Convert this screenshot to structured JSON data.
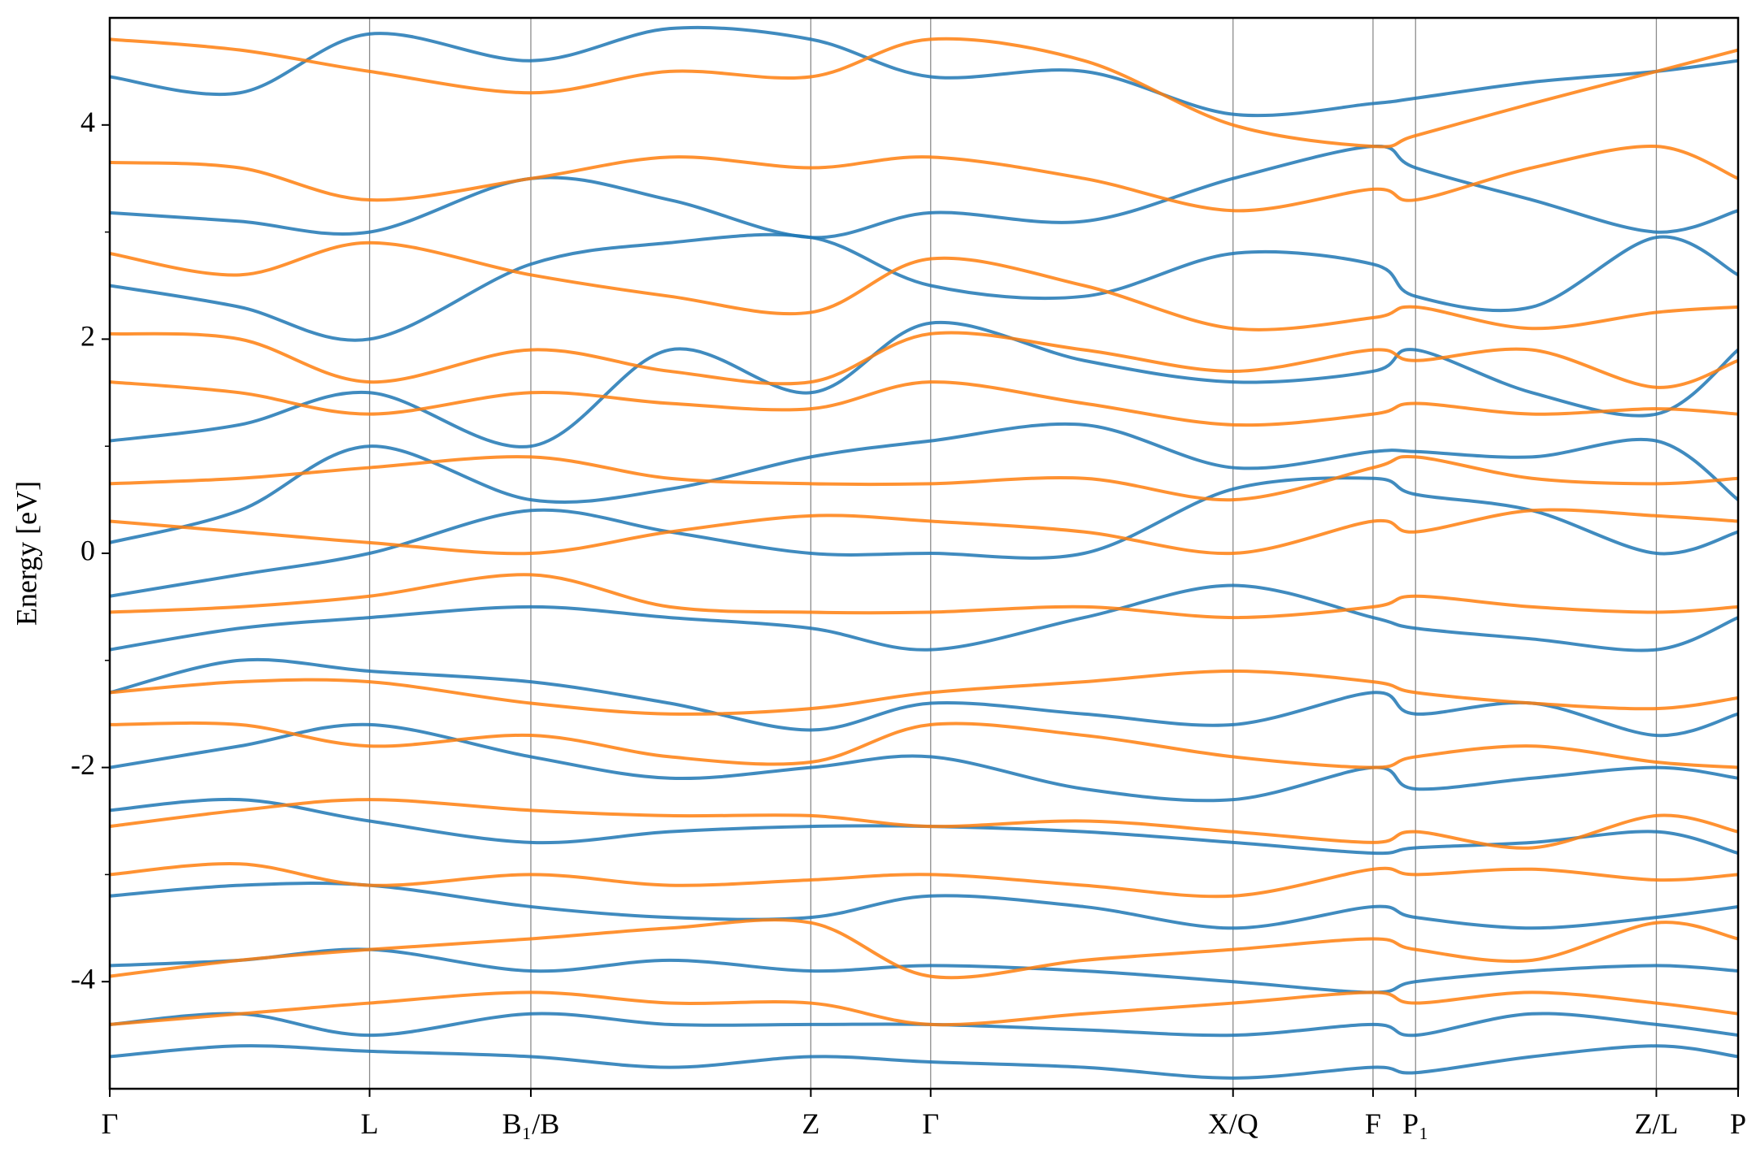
{
  "chart_data": {
    "type": "line",
    "y_label": "Energy [eV]",
    "x": [
      0,
      1.16,
      2.32,
      3.76,
      5.0,
      6.26,
      7.33,
      8.7,
      10.03,
      11.28,
      11.66,
      12.7,
      13.81,
      14.54
    ],
    "xlim": [
      0,
      14.54
    ],
    "xticks": [
      {
        "value": 0,
        "label": "Γ"
      },
      {
        "value": 2.32,
        "label": "L"
      },
      {
        "value": 3.76,
        "label": "B₁/B"
      },
      {
        "value": 6.26,
        "label": "Z"
      },
      {
        "value": 7.33,
        "label": "Γ"
      },
      {
        "value": 10.03,
        "label": "X/Q"
      },
      {
        "value": 11.28,
        "label": "F"
      },
      {
        "value": 11.66,
        "label": "P₁"
      },
      {
        "value": 13.81,
        "label": "Z/L"
      },
      {
        "value": 14.54,
        "label": "P"
      }
    ],
    "ylim": [
      -5,
      5
    ],
    "yticks": [
      -4,
      -2,
      0,
      2,
      4
    ],
    "yminorticks": [
      -3,
      -1,
      1,
      3
    ],
    "grid": true,
    "series": [
      {
        "color": "#1f77b4",
        "values": [
          4.45,
          4.3,
          4.85,
          4.6,
          4.9,
          4.8,
          4.45,
          4.5,
          4.1,
          4.2,
          4.25,
          4.4,
          4.5,
          4.6
        ]
      },
      {
        "color": "#1f77b4",
        "values": [
          3.18,
          3.1,
          3.0,
          3.5,
          3.3,
          2.95,
          3.18,
          3.1,
          3.5,
          3.8,
          3.6,
          3.3,
          3.0,
          3.2
        ]
      },
      {
        "color": "#1f77b4",
        "values": [
          2.5,
          2.3,
          2.0,
          2.7,
          2.9,
          2.95,
          2.5,
          2.4,
          2.8,
          2.7,
          2.4,
          2.3,
          2.95,
          2.6
        ]
      },
      {
        "color": "#1f77b4",
        "values": [
          1.05,
          1.2,
          1.5,
          1.0,
          1.9,
          1.5,
          2.15,
          1.8,
          1.6,
          1.7,
          1.9,
          1.5,
          1.3,
          1.9
        ]
      },
      {
        "color": "#1f77b4",
        "values": [
          0.1,
          0.4,
          1.0,
          0.5,
          0.6,
          0.9,
          1.05,
          1.2,
          0.8,
          0.95,
          0.95,
          0.9,
          1.05,
          0.5
        ]
      },
      {
        "color": "#1f77b4",
        "values": [
          -0.4,
          -0.2,
          0.0,
          0.4,
          0.2,
          0.0,
          0.0,
          0.0,
          0.6,
          0.7,
          0.55,
          0.4,
          0.0,
          0.2
        ]
      },
      {
        "color": "#1f77b4",
        "values": [
          -0.9,
          -0.7,
          -0.6,
          -0.5,
          -0.6,
          -0.7,
          -0.9,
          -0.6,
          -0.3,
          -0.6,
          -0.7,
          -0.8,
          -0.9,
          -0.6
        ]
      },
      {
        "color": "#1f77b4",
        "values": [
          -1.3,
          -1.0,
          -1.1,
          -1.2,
          -1.4,
          -1.65,
          -1.4,
          -1.5,
          -1.6,
          -1.3,
          -1.5,
          -1.4,
          -1.7,
          -1.5
        ]
      },
      {
        "color": "#1f77b4",
        "values": [
          -2.0,
          -1.8,
          -1.6,
          -1.9,
          -2.1,
          -2.0,
          -1.9,
          -2.2,
          -2.3,
          -2.0,
          -2.2,
          -2.1,
          -2.0,
          -2.1
        ]
      },
      {
        "color": "#1f77b4",
        "values": [
          -2.4,
          -2.3,
          -2.5,
          -2.7,
          -2.6,
          -2.55,
          -2.55,
          -2.6,
          -2.7,
          -2.8,
          -2.75,
          -2.7,
          -2.6,
          -2.8
        ]
      },
      {
        "color": "#1f77b4",
        "values": [
          -3.2,
          -3.1,
          -3.1,
          -3.3,
          -3.4,
          -3.4,
          -3.2,
          -3.3,
          -3.5,
          -3.3,
          -3.4,
          -3.5,
          -3.4,
          -3.3
        ]
      },
      {
        "color": "#1f77b4",
        "values": [
          -3.85,
          -3.8,
          -3.7,
          -3.9,
          -3.8,
          -3.9,
          -3.85,
          -3.9,
          -4.0,
          -4.1,
          -4.0,
          -3.9,
          -3.85,
          -3.9
        ]
      },
      {
        "color": "#1f77b4",
        "values": [
          -4.4,
          -4.3,
          -4.5,
          -4.3,
          -4.4,
          -4.4,
          -4.4,
          -4.45,
          -4.5,
          -4.4,
          -4.5,
          -4.3,
          -4.4,
          -4.5
        ]
      },
      {
        "color": "#1f77b4",
        "values": [
          -4.7,
          -4.6,
          -4.65,
          -4.7,
          -4.8,
          -4.7,
          -4.75,
          -4.8,
          -4.9,
          -4.8,
          -4.85,
          -4.7,
          -4.6,
          -4.7
        ]
      },
      {
        "color": "#ff7f0e",
        "values": [
          4.8,
          4.7,
          4.5,
          4.3,
          4.5,
          4.45,
          4.8,
          4.6,
          4.0,
          3.8,
          3.9,
          4.2,
          4.5,
          4.7
        ]
      },
      {
        "color": "#ff7f0e",
        "values": [
          3.65,
          3.6,
          3.3,
          3.5,
          3.7,
          3.6,
          3.7,
          3.5,
          3.2,
          3.4,
          3.3,
          3.6,
          3.8,
          3.5
        ]
      },
      {
        "color": "#ff7f0e",
        "values": [
          2.8,
          2.6,
          2.9,
          2.6,
          2.4,
          2.25,
          2.75,
          2.5,
          2.1,
          2.2,
          2.3,
          2.1,
          2.25,
          2.3
        ]
      },
      {
        "color": "#ff7f0e",
        "values": [
          2.05,
          2.0,
          1.6,
          1.9,
          1.7,
          1.6,
          2.05,
          1.9,
          1.7,
          1.9,
          1.8,
          1.9,
          1.55,
          1.8
        ]
      },
      {
        "color": "#ff7f0e",
        "values": [
          1.6,
          1.5,
          1.3,
          1.5,
          1.4,
          1.35,
          1.6,
          1.4,
          1.2,
          1.3,
          1.4,
          1.3,
          1.35,
          1.3
        ]
      },
      {
        "color": "#ff7f0e",
        "values": [
          0.65,
          0.7,
          0.8,
          0.9,
          0.7,
          0.65,
          0.65,
          0.7,
          0.5,
          0.8,
          0.9,
          0.7,
          0.65,
          0.7
        ]
      },
      {
        "color": "#ff7f0e",
        "values": [
          0.3,
          0.2,
          0.1,
          0.0,
          0.2,
          0.35,
          0.3,
          0.2,
          0.0,
          0.3,
          0.2,
          0.4,
          0.35,
          0.3
        ]
      },
      {
        "color": "#ff7f0e",
        "values": [
          -0.55,
          -0.5,
          -0.4,
          -0.2,
          -0.5,
          -0.55,
          -0.55,
          -0.5,
          -0.6,
          -0.5,
          -0.4,
          -0.5,
          -0.55,
          -0.5
        ]
      },
      {
        "color": "#ff7f0e",
        "values": [
          -1.3,
          -1.2,
          -1.2,
          -1.4,
          -1.5,
          -1.45,
          -1.3,
          -1.2,
          -1.1,
          -1.2,
          -1.3,
          -1.4,
          -1.45,
          -1.35
        ]
      },
      {
        "color": "#ff7f0e",
        "values": [
          -1.6,
          -1.6,
          -1.8,
          -1.7,
          -1.9,
          -1.95,
          -1.6,
          -1.7,
          -1.9,
          -2.0,
          -1.9,
          -1.8,
          -1.95,
          -2.0
        ]
      },
      {
        "color": "#ff7f0e",
        "values": [
          -2.55,
          -2.4,
          -2.3,
          -2.4,
          -2.45,
          -2.45,
          -2.55,
          -2.5,
          -2.6,
          -2.7,
          -2.6,
          -2.75,
          -2.45,
          -2.6
        ]
      },
      {
        "color": "#ff7f0e",
        "values": [
          -3.0,
          -2.9,
          -3.1,
          -3.0,
          -3.1,
          -3.05,
          -3.0,
          -3.1,
          -3.2,
          -2.95,
          -3.0,
          -2.95,
          -3.05,
          -3.0
        ]
      },
      {
        "color": "#ff7f0e",
        "values": [
          -3.95,
          -3.8,
          -3.7,
          -3.6,
          -3.5,
          -3.45,
          -3.95,
          -3.8,
          -3.7,
          -3.6,
          -3.7,
          -3.8,
          -3.45,
          -3.6
        ]
      },
      {
        "color": "#ff7f0e",
        "values": [
          -4.4,
          -4.3,
          -4.2,
          -4.1,
          -4.2,
          -4.2,
          -4.4,
          -4.3,
          -4.2,
          -4.1,
          -4.2,
          -4.1,
          -4.2,
          -4.3
        ]
      }
    ]
  }
}
